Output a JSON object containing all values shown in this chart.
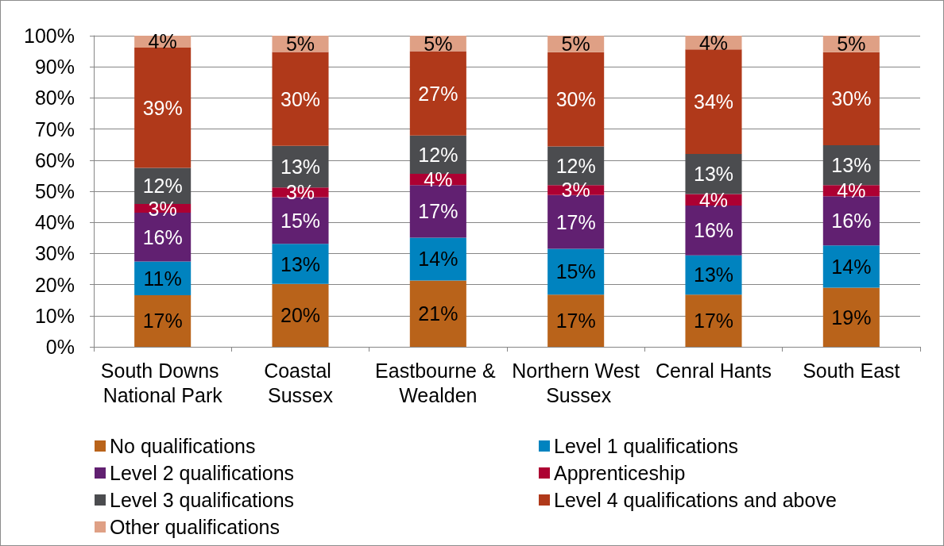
{
  "chart_data": {
    "type": "bar",
    "stacked": true,
    "categories": [
      "South Downs National Park",
      "Coastal Sussex",
      "Eastbourne & Wealden",
      "Northern West Sussex",
      "Cenral Hants",
      "South East"
    ],
    "series": [
      {
        "name": "No qualifications",
        "color": "#b9631a",
        "values": [
          16.6,
          20.2,
          21.3,
          16.8,
          16.8,
          19.0
        ],
        "value_labels": [
          "17%",
          "20%",
          "21%",
          "17%",
          "17%",
          "19%"
        ]
      },
      {
        "name": "Level 1 qualifications",
        "color": "#0083bf",
        "values": [
          10.8,
          12.9,
          13.8,
          14.7,
          12.6,
          13.6
        ],
        "value_labels": [
          "11%",
          "13%",
          "14%",
          "15%",
          "13%",
          "14%"
        ]
      },
      {
        "name": "Level 2 qualifications",
        "color": "#612071",
        "values": [
          15.7,
          15.0,
          16.9,
          17.3,
          16.0,
          15.8
        ],
        "value_labels": [
          "16%",
          "15%",
          "17%",
          "17%",
          "16%",
          "16%"
        ]
      },
      {
        "name": "Apprenticeship",
        "color": "#ad0032",
        "values": [
          2.8,
          3.1,
          3.6,
          3.2,
          3.7,
          3.6
        ],
        "value_labels": [
          "3%",
          "3%",
          "4%",
          "3%",
          "4%",
          "4%"
        ]
      },
      {
        "name": "Level 3 qualifications",
        "color": "#4b4c4f",
        "values": [
          11.6,
          13.4,
          12.3,
          12.4,
          12.9,
          12.8
        ],
        "value_labels": [
          "12%",
          "13%",
          "12%",
          "12%",
          "13%",
          "13%"
        ]
      },
      {
        "name": "Level 4 qualifications and above",
        "color": "#b0391a",
        "values": [
          38.7,
          30.2,
          27.1,
          30.3,
          33.6,
          29.9
        ],
        "value_labels": [
          "39%",
          "30%",
          "27%",
          "30%",
          "34%",
          "30%"
        ]
      },
      {
        "name": "Other qualifications",
        "color": "#dfa085",
        "values": [
          3.8,
          5.2,
          5.0,
          5.3,
          4.4,
          5.3
        ],
        "value_labels": [
          "4%",
          "5%",
          "5%",
          "5%",
          "4%",
          "5%"
        ]
      }
    ],
    "ylim": [
      0,
      100
    ],
    "yticks": [
      {
        "value": 0,
        "label": "0%"
      },
      {
        "value": 10,
        "label": "10%"
      },
      {
        "value": 20,
        "label": "20%"
      },
      {
        "value": 30,
        "label": "30%"
      },
      {
        "value": 40,
        "label": "40%"
      },
      {
        "value": 50,
        "label": "50%"
      },
      {
        "value": 60,
        "label": "60%"
      },
      {
        "value": 70,
        "label": "70%"
      },
      {
        "value": 80,
        "label": "80%"
      },
      {
        "value": 90,
        "label": "90%"
      },
      {
        "value": 100,
        "label": "100%"
      }
    ],
    "grid": "y",
    "legend": "bottom"
  }
}
